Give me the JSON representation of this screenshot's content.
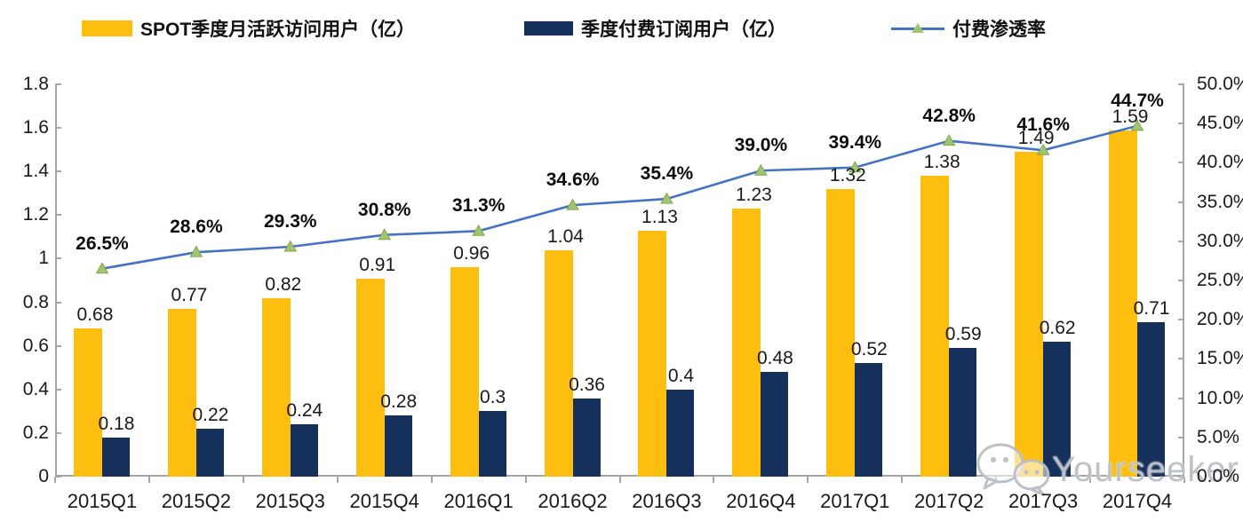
{
  "legend": {
    "items": [
      {
        "label": "SPOT季度月活跃访问用户（亿）",
        "type": "bar",
        "color": "#FDBE10"
      },
      {
        "label": "季度付费订阅用户（亿）",
        "type": "bar",
        "color": "#16305C"
      },
      {
        "label": "付费渗透率",
        "type": "line",
        "color": "#4472C4",
        "marker_color": "#A3C46F"
      }
    ]
  },
  "watermark": {
    "text": "Yourseeker",
    "icon": "wechat-icon"
  },
  "colors": {
    "mau_bar": "#FDBE10",
    "sub_bar": "#16305C",
    "line": "#4472C4",
    "marker_fill": "#A3C46F",
    "marker_edge": "#7FA653",
    "axis": "#A6A6A6",
    "text": "#1A1A1A",
    "watermark": "#BEC4C9"
  },
  "chart_data": {
    "type": "bar",
    "subtype": "grouped-bars-with-line",
    "categories": [
      "2015Q1",
      "2015Q2",
      "2015Q3",
      "2015Q4",
      "2016Q1",
      "2016Q2",
      "2016Q3",
      "2016Q4",
      "2017Q1",
      "2017Q2",
      "2017Q3",
      "2017Q4"
    ],
    "series": [
      {
        "name": "SPOT季度月活跃访问用户（亿）",
        "type": "bar",
        "axis": "left",
        "color": "#FDBE10",
        "values": [
          0.68,
          0.77,
          0.82,
          0.91,
          0.96,
          1.04,
          1.13,
          1.23,
          1.32,
          1.38,
          1.49,
          1.59
        ],
        "labels": [
          "0.68",
          "0.77",
          "0.82",
          "0.91",
          "0.96",
          "1.04",
          "1.13",
          "1.23",
          "1.32",
          "1.38",
          "1.49",
          "1.59"
        ]
      },
      {
        "name": "季度付费订阅用户（亿）",
        "type": "bar",
        "axis": "left",
        "color": "#16305C",
        "values": [
          0.18,
          0.22,
          0.24,
          0.28,
          0.3,
          0.36,
          0.4,
          0.48,
          0.52,
          0.59,
          0.62,
          0.71
        ],
        "labels": [
          "0.18",
          "0.22",
          "0.24",
          "0.28",
          "0.3",
          "0.36",
          "0.4",
          "0.48",
          "0.52",
          "0.59",
          "0.62",
          "0.71"
        ]
      },
      {
        "name": "付费渗透率",
        "type": "line",
        "axis": "right",
        "color": "#4472C4",
        "marker": "triangle",
        "values": [
          26.5,
          28.6,
          29.3,
          30.8,
          31.3,
          34.6,
          35.4,
          39.0,
          39.4,
          42.8,
          41.6,
          44.7
        ],
        "labels": [
          "26.5%",
          "28.6%",
          "29.3%",
          "30.8%",
          "31.3%",
          "34.6%",
          "35.4%",
          "39.0%",
          "39.4%",
          "42.8%",
          "41.6%",
          "44.7%"
        ]
      }
    ],
    "left_axis": {
      "min": 0,
      "max": 1.8,
      "tick_values": [
        0,
        0.2,
        0.4,
        0.6,
        0.8,
        1,
        1.2,
        1.4,
        1.6,
        1.8
      ],
      "tick_labels": [
        "0",
        "0.2",
        "0.4",
        "0.6",
        "0.8",
        "1",
        "1.2",
        "1.4",
        "1.6",
        "1.8"
      ]
    },
    "right_axis": {
      "min": 0,
      "max": 50,
      "tick_values": [
        0,
        5,
        10,
        15,
        20,
        25,
        30,
        35,
        40,
        45,
        50
      ],
      "tick_labels": [
        "0.0%",
        "5.0%",
        "10.0%",
        "15.0%",
        "20.0%",
        "25.0%",
        "30.0%",
        "35.0%",
        "40.0%",
        "45.0%",
        "50.0%"
      ]
    },
    "grid": false,
    "legend_position": "top",
    "title": ""
  }
}
